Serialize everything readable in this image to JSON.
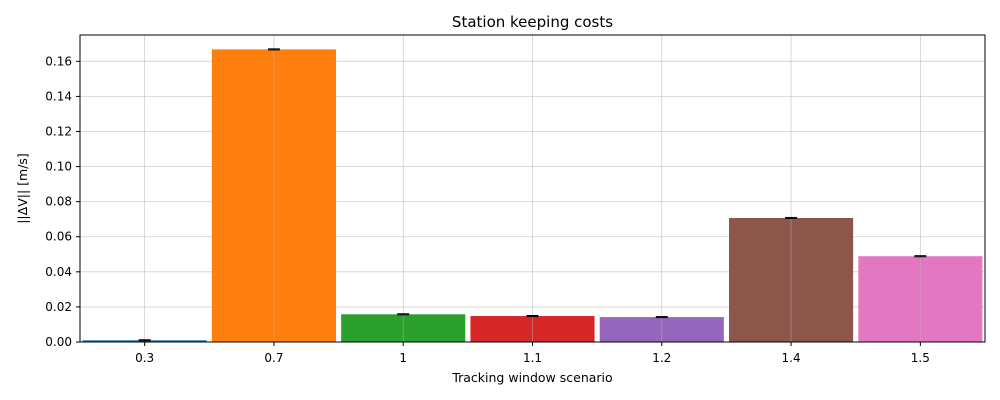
{
  "chart_data": {
    "type": "bar",
    "title": "Station keeping costs",
    "xlabel": "Tracking window scenario",
    "ylabel": "||ΔV|| [m/s]",
    "categories": [
      "0.3",
      "0.7",
      "1",
      "1.1",
      "1.2",
      "1.4",
      "1.5"
    ],
    "values": [
      0.001,
      0.1668,
      0.0158,
      0.0148,
      0.0142,
      0.0707,
      0.0489
    ],
    "error": [
      0.0003,
      0.0003,
      0.0003,
      0.0003,
      0.0003,
      0.0003,
      0.0003
    ],
    "colors": [
      "#1f77b4",
      "#ff7f0e",
      "#2ca02c",
      "#d62728",
      "#9467bd",
      "#8c564b",
      "#e377c2"
    ],
    "ylim": [
      0,
      0.175
    ],
    "yticks": [
      0.0,
      0.02,
      0.04,
      0.06,
      0.08,
      0.1,
      0.12,
      0.14,
      0.16
    ],
    "ytick_labels": [
      "0.00",
      "0.02",
      "0.04",
      "0.06",
      "0.08",
      "0.10",
      "0.12",
      "0.14",
      "0.16"
    ],
    "grid": true
  }
}
